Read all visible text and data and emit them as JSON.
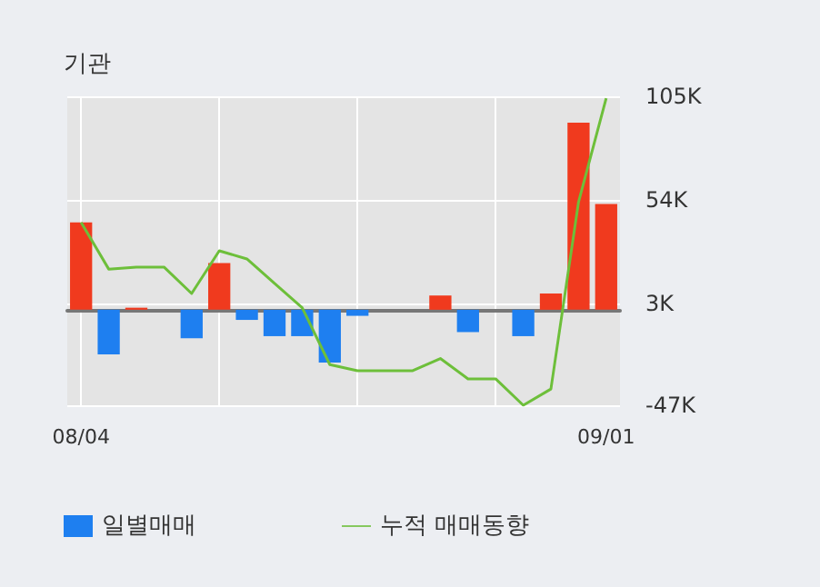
{
  "chart_data": {
    "type": "bar",
    "title": "기관",
    "categories": [
      "08/04",
      null,
      null,
      null,
      null,
      null,
      null,
      null,
      null,
      null,
      null,
      null,
      null,
      null,
      null,
      null,
      null,
      null,
      null,
      "09/01"
    ],
    "series": [
      {
        "name": "일별매매",
        "values": [
          43000,
          -22000,
          1000,
          0,
          -14000,
          23000,
          -5000,
          -13000,
          -13000,
          -26000,
          -3000,
          0,
          0,
          7000,
          -11000,
          0,
          -13000,
          8000,
          92000,
          52000
        ],
        "colors": [
          "#f03a1e",
          "#1e7ff0",
          "#f03a1e",
          "#f03a1e",
          "#1e7ff0",
          "#f03a1e",
          "#1e7ff0",
          "#1e7ff0",
          "#1e7ff0",
          "#1e7ff0",
          "#1e7ff0",
          "#f03a1e",
          "#f03a1e",
          "#f03a1e",
          "#1e7ff0",
          "#f03a1e",
          "#1e7ff0",
          "#f03a1e",
          "#f03a1e",
          "#f03a1e"
        ]
      },
      {
        "name": "누적 매매동향",
        "type": "line",
        "color": "#6dbf3a",
        "values": [
          43000,
          20000,
          21000,
          21000,
          8000,
          29000,
          25000,
          13000,
          1000,
          -27000,
          -30000,
          -30000,
          -30000,
          -24000,
          -34000,
          -34000,
          -47000,
          -39000,
          53000,
          104000
        ]
      }
    ],
    "ylim": [
      -47000,
      105000
    ],
    "yticks": [
      {
        "value": 105000,
        "label": "105K"
      },
      {
        "value": 54000,
        "label": "54K"
      },
      {
        "value": 3000,
        "label": "3K"
      },
      {
        "value": -47000,
        "label": "-47K"
      }
    ],
    "grid": true,
    "legend": "bottom",
    "marker": "none"
  }
}
